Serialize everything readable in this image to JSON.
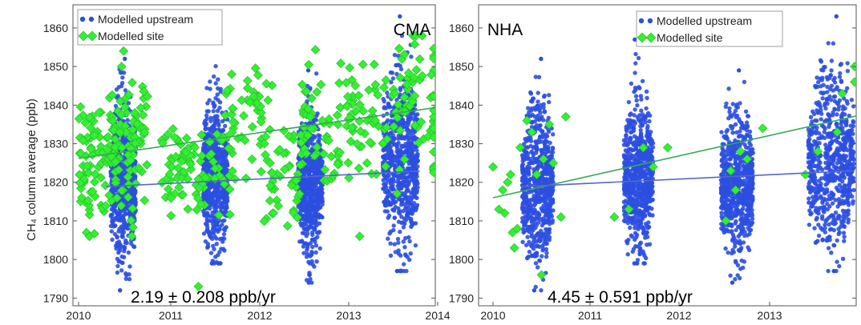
{
  "colors": {
    "upstream": "#2c4fe0",
    "site": "#33ee33",
    "upstream_trend": "#5566cc",
    "site_trend": "#33aa55"
  },
  "shared": {
    "ylabel": "CH₄ column average (ppb)",
    "legend": {
      "upstream": "Modelled upstream",
      "site": "Modelled site"
    }
  },
  "chart_data": [
    {
      "type": "scatter",
      "title": "CMA",
      "ylabel": "CH₄ column average (ppb)",
      "xlabel": "",
      "ylim": [
        1788,
        1866
      ],
      "xlim": [
        2010,
        2014
      ],
      "x_ticks": [
        "2010",
        "2011",
        "2012",
        "2013",
        "2014"
      ],
      "y_ticks": [
        "1790",
        "1800",
        "1810",
        "1820",
        "1830",
        "1840",
        "1850",
        "1860"
      ],
      "legend_position": "top-left",
      "annotation": "2.19 ± 0.208 ppb/yr",
      "series": [
        {
          "name": "Modelled upstream",
          "marker": "circle",
          "seasons": [
            {
              "x": [
                2010.35,
                2010.62
              ],
              "y_low": 1792,
              "y_high": 1852,
              "center": 1820
            },
            {
              "x": [
                2011.35,
                2011.62
              ],
              "y_low": 1799,
              "y_high": 1857,
              "center": 1822
            },
            {
              "x": [
                2012.38,
                2012.65
              ],
              "y_low": 1794,
              "y_high": 1849,
              "center": 1820
            },
            {
              "x": [
                2013.3,
                2013.68
              ],
              "y_low": 1797,
              "y_high": 1863,
              "center": 1826
            }
          ],
          "trend": {
            "x": [
              2010.3,
              2013.7
            ],
            "y": [
              1818.9,
              1822.9
            ]
          }
        },
        {
          "name": "Modelled site",
          "marker": "diamond",
          "clusters": [
            {
              "x": [
                2010.0,
                2010.3
              ],
              "y_low": 1803,
              "y_high": 1845,
              "center": 1826,
              "n": 70
            },
            {
              "x": [
                2010.3,
                2010.75
              ],
              "y_low": 1806,
              "y_high": 1854,
              "center": 1830,
              "n": 110
            },
            {
              "x": [
                2010.9,
                2011.15
              ],
              "y_low": 1810,
              "y_high": 1838,
              "center": 1824,
              "n": 35
            },
            {
              "x": [
                2011.1,
                2011.7
              ],
              "y_low": 1807,
              "y_high": 1845,
              "center": 1825,
              "n": 60
            },
            {
              "x": [
                2011.6,
                2012.1
              ],
              "y_low": 1820,
              "y_high": 1853,
              "center": 1837,
              "n": 45
            },
            {
              "x": [
                2012.0,
                2012.4
              ],
              "y_low": 1807,
              "y_high": 1836,
              "center": 1822,
              "n": 45
            },
            {
              "x": [
                2012.4,
                2012.85
              ],
              "y_low": 1814,
              "y_high": 1857,
              "center": 1835,
              "n": 60
            },
            {
              "x": [
                2012.9,
                2013.35
              ],
              "y_low": 1818,
              "y_high": 1857,
              "center": 1835,
              "n": 60
            },
            {
              "x": [
                2013.4,
                2013.95
              ],
              "y_low": 1808,
              "y_high": 1858,
              "center": 1842,
              "n": 70
            }
          ],
          "outliers": [
            {
              "x": 2011.3,
              "y": 1793
            },
            {
              "x": 2013.05,
              "y": 1806
            },
            {
              "x": 2014.0,
              "y": 1834
            }
          ],
          "trend": {
            "x": [
              2010.0,
              2014.0
            ],
            "y": [
              1826.2,
              1839.8
            ]
          }
        }
      ]
    },
    {
      "type": "scatter",
      "title": "NHA",
      "ylabel": "",
      "xlabel": "",
      "ylim": [
        1788,
        1866
      ],
      "xlim": [
        2010,
        2014
      ],
      "x_ticks": [
        "2010",
        "2011",
        "2012",
        "2013"
      ],
      "y_ticks": [
        "1790",
        "1800",
        "1810",
        "1820",
        "1830",
        "1840",
        "1850",
        "1860"
      ],
      "legend_position": "top-right",
      "annotation": "4.45 ± 0.591 ppb/yr",
      "series": [
        {
          "name": "Modelled upstream",
          "marker": "circle",
          "seasons": [
            {
              "x": [
                2010.3,
                2010.62
              ],
              "y_low": 1792,
              "y_high": 1852,
              "center": 1820
            },
            {
              "x": [
                2011.35,
                2011.65
              ],
              "y_low": 1799,
              "y_high": 1857,
              "center": 1822
            },
            {
              "x": [
                2012.35,
                2012.68
              ],
              "y_low": 1794,
              "y_high": 1849,
              "center": 1820
            },
            {
              "x": [
                2013.25,
                2013.72
              ],
              "y_low": 1797,
              "y_high": 1863,
              "center": 1826
            }
          ],
          "trend": {
            "x": [
              2010.3,
              2013.72
            ],
            "y": [
              1818.9,
              1823.0
            ]
          }
        },
        {
          "name": "Modelled site",
          "marker": "diamond",
          "points": [
            {
              "x": 2010.0,
              "y": 1824
            },
            {
              "x": 2010.06,
              "y": 1813
            },
            {
              "x": 2010.1,
              "y": 1818
            },
            {
              "x": 2010.12,
              "y": 1812
            },
            {
              "x": 2010.15,
              "y": 1820
            },
            {
              "x": 2010.18,
              "y": 1822
            },
            {
              "x": 2010.2,
              "y": 1807
            },
            {
              "x": 2010.22,
              "y": 1803
            },
            {
              "x": 2010.25,
              "y": 1808
            },
            {
              "x": 2010.28,
              "y": 1829
            },
            {
              "x": 2010.35,
              "y": 1836
            },
            {
              "x": 2010.4,
              "y": 1833
            },
            {
              "x": 2010.45,
              "y": 1822
            },
            {
              "x": 2010.5,
              "y": 1796
            },
            {
              "x": 2010.52,
              "y": 1826
            },
            {
              "x": 2010.58,
              "y": 1835
            },
            {
              "x": 2010.62,
              "y": 1825
            },
            {
              "x": 2010.7,
              "y": 1811
            },
            {
              "x": 2010.75,
              "y": 1837
            },
            {
              "x": 2011.25,
              "y": 1811
            },
            {
              "x": 2011.4,
              "y": 1813
            },
            {
              "x": 2011.55,
              "y": 1829
            },
            {
              "x": 2011.65,
              "y": 1824
            },
            {
              "x": 2011.8,
              "y": 1829
            },
            {
              "x": 2012.4,
              "y": 1810
            },
            {
              "x": 2012.45,
              "y": 1823
            },
            {
              "x": 2012.5,
              "y": 1818
            },
            {
              "x": 2012.55,
              "y": 1828
            },
            {
              "x": 2012.62,
              "y": 1826
            },
            {
              "x": 2012.78,
              "y": 1834
            },
            {
              "x": 2013.22,
              "y": 1822
            },
            {
              "x": 2013.35,
              "y": 1828
            },
            {
              "x": 2013.55,
              "y": 1833
            },
            {
              "x": 2013.6,
              "y": 1843
            },
            {
              "x": 2013.92,
              "y": 1850
            },
            {
              "x": 2014.0,
              "y": 1846
            }
          ],
          "trend": {
            "x": [
              2010.0,
              2013.8
            ],
            "y": [
              1816.0,
              1837.5
            ]
          }
        }
      ]
    }
  ]
}
